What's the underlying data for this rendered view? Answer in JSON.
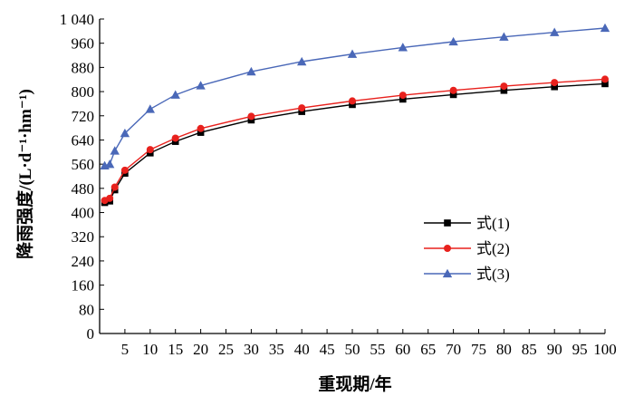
{
  "chart_data": {
    "type": "line",
    "xlabel": "重现期/年",
    "ylabel": "降雨强度/(L·d⁻¹·hm⁻¹)",
    "xlim": [
      0,
      100
    ],
    "ylim": [
      0,
      1040
    ],
    "x_ticks": [
      0,
      5,
      10,
      15,
      20,
      25,
      30,
      35,
      40,
      45,
      50,
      55,
      60,
      65,
      70,
      75,
      80,
      85,
      90,
      95,
      100
    ],
    "x_tick_labels": [
      "5",
      "10",
      "15",
      "20",
      "25",
      "30",
      "35",
      "40",
      "45",
      "50",
      "55",
      "60",
      "65",
      "70",
      "75",
      "80",
      "85",
      "90",
      "95",
      "100"
    ],
    "y_ticks": [
      0,
      80,
      160,
      240,
      320,
      400,
      480,
      560,
      640,
      720,
      800,
      880,
      960,
      1040
    ],
    "y_tick_labels": [
      "0",
      "80",
      "160",
      "240",
      "320",
      "400",
      "480",
      "560",
      "640",
      "720",
      "800",
      "880",
      "960",
      "1 040"
    ],
    "grid": false,
    "legend_position": "right-middle",
    "x": [
      1,
      2,
      3,
      5,
      10,
      15,
      20,
      30,
      40,
      50,
      60,
      70,
      80,
      90,
      100
    ],
    "series": [
      {
        "name": "式(1)",
        "color": "#000000",
        "marker": "square",
        "values": [
          433,
          438,
          475,
          530,
          597,
          635,
          665,
          706,
          734,
          757,
          775,
          790,
          804,
          816,
          826
        ]
      },
      {
        "name": "式(2)",
        "color": "#e8211d",
        "marker": "circle",
        "values": [
          440,
          447,
          484,
          540,
          608,
          646,
          678,
          718,
          746,
          769,
          788,
          804,
          818,
          830,
          841
        ]
      },
      {
        "name": "式(3)",
        "color": "#4a68b8",
        "marker": "triangle",
        "values": [
          555,
          560,
          604,
          662,
          742,
          789,
          820,
          866,
          899,
          924,
          946,
          965,
          981,
          996,
          1010
        ]
      }
    ]
  }
}
